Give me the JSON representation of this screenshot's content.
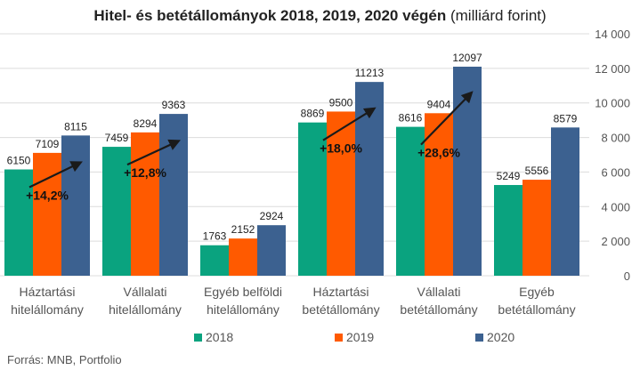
{
  "chart_data": {
    "type": "bar",
    "title_bold": "Hitel- és betétállományok 2018, 2019, 2020 végén",
    "title_unit": "(milliárd forint)",
    "source": "Forrás: MNB, Portfolio",
    "categories": [
      [
        "Háztartási",
        "hitelállomány"
      ],
      [
        "Vállalati",
        "hitelállomány"
      ],
      [
        "Egyéb belföldi",
        "hitelállomány"
      ],
      [
        "Háztartási",
        "betétállomány"
      ],
      [
        "Vállalati",
        "betétállomány"
      ],
      [
        "Egyéb",
        "betétállomány"
      ]
    ],
    "series": [
      {
        "name": "2018",
        "color": "#0aa37f",
        "values": [
          6150,
          7459,
          1763,
          8869,
          8616,
          5249
        ]
      },
      {
        "name": "2019",
        "color": "#ff5a00",
        "values": [
          7109,
          8294,
          2152,
          9500,
          9404,
          5556
        ]
      },
      {
        "name": "2020",
        "color": "#3c6190",
        "values": [
          8115,
          9363,
          2924,
          11213,
          12097,
          8579
        ]
      }
    ],
    "value_labels": [
      [
        "6150",
        "7459",
        "1763",
        "8869",
        "8616",
        "5249"
      ],
      [
        "7109",
        "8294",
        "2152",
        "9500",
        "9404",
        "5556"
      ],
      [
        "8115",
        "9363",
        "2924",
        "11213",
        "12097",
        "8579"
      ]
    ],
    "annotations": [
      {
        "category": 0,
        "text": "+14,2%"
      },
      {
        "category": 1,
        "text": "+12,8%"
      },
      {
        "category": 3,
        "text": "+18,0%"
      },
      {
        "category": 4,
        "text": "+28,6%"
      }
    ],
    "y_axis": {
      "position": "right",
      "min": 0,
      "max": 14000,
      "step": 2000,
      "tick_labels": [
        "0",
        "2 000",
        "4 000",
        "6 000",
        "8 000",
        "10 000",
        "12 000",
        "14 000"
      ]
    },
    "grid": true,
    "legend_position": "bottom"
  }
}
